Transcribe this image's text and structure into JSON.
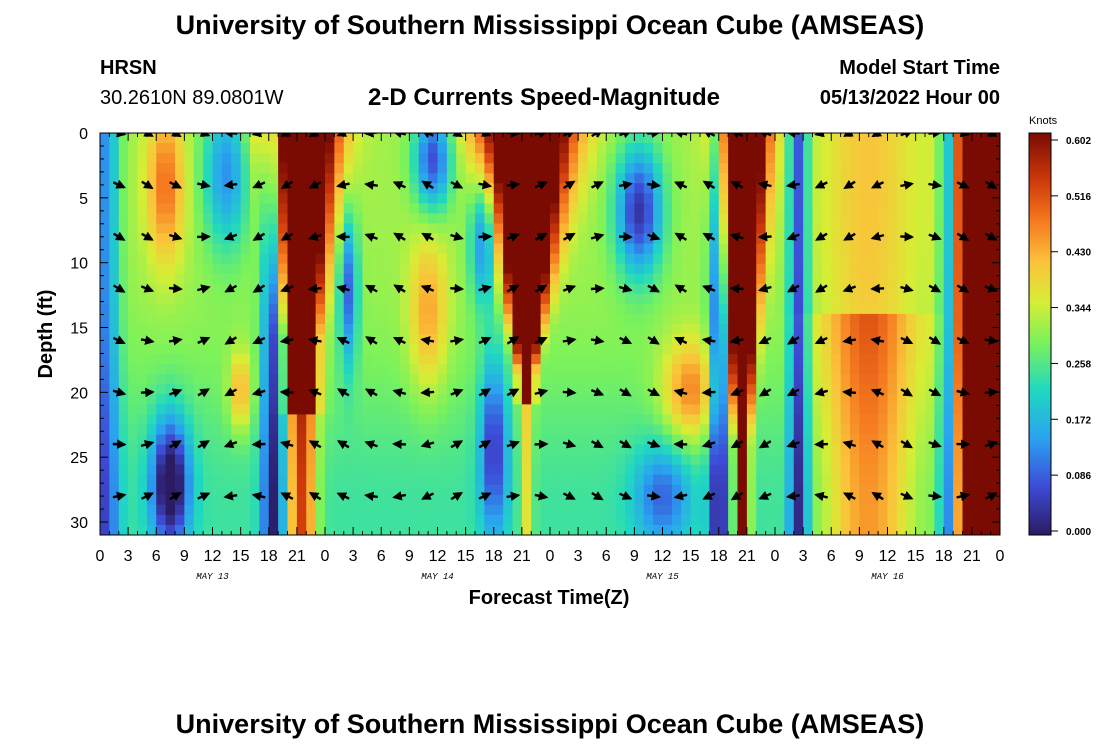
{
  "header": {
    "title": "University of Southern Mississippi Ocean Cube (AMSEAS)",
    "station": "HRSN",
    "coords": "30.2610N  89.0801W",
    "subtitle": "2-D Currents Speed-Magnitude",
    "model_start_label": "Model Start Time",
    "model_start": "05/13/2022 Hour 00"
  },
  "footer": {
    "title": "University of Southern Mississippi Ocean Cube (AMSEAS)"
  },
  "chart_data": {
    "type": "heatmap",
    "xlabel": "Forecast Time(Z)",
    "ylabel": "Depth (ft)",
    "x_tick_labels": [
      "0",
      "3",
      "6",
      "9",
      "12",
      "15",
      "18",
      "21",
      "0",
      "3",
      "6",
      "9",
      "12",
      "15",
      "18",
      "21",
      "0",
      "3",
      "6",
      "9",
      "12",
      "15",
      "18",
      "21",
      "0",
      "3",
      "6",
      "9",
      "12",
      "15",
      "18",
      "21",
      "0"
    ],
    "x_range_hours": [
      0,
      96
    ],
    "date_labels": [
      {
        "label": "MAY 13",
        "hour": 12
      },
      {
        "label": "MAY 14",
        "hour": 36
      },
      {
        "label": "MAY 15",
        "hour": 60
      },
      {
        "label": "MAY 16",
        "hour": 84
      }
    ],
    "y_ticks": [
      0,
      5,
      10,
      15,
      20,
      25,
      30
    ],
    "ylim": [
      0,
      31
    ],
    "colorbar": {
      "units": "Knots",
      "min": 0.0,
      "max": 0.602,
      "ticks": [
        "0.602",
        "0.516",
        "0.430",
        "0.344",
        "0.258",
        "0.172",
        "0.086",
        "0.000"
      ]
    },
    "speed_knots": [
      {
        "depth_range_ft": [
          0,
          31
        ],
        "hours": [
          20,
          22
        ],
        "approx": 0.55
      },
      {
        "depth_range_ft": [
          0,
          18
        ],
        "hours": [
          42,
          48
        ],
        "approx": 0.58
      },
      {
        "depth_range_ft": [
          0,
          31
        ],
        "hours": [
          67,
          70
        ],
        "approx": 0.58
      },
      {
        "depth_range_ft": [
          0,
          31
        ],
        "hours": [
          92,
          96
        ],
        "approx": 0.56
      },
      {
        "depth_range_ft": [
          20,
          31
        ],
        "hours": [
          6,
          9
        ],
        "approx": 0.02
      }
    ],
    "vectors_depths_ft": [
      0,
      4,
      8,
      12,
      16,
      20,
      24,
      28
    ]
  }
}
